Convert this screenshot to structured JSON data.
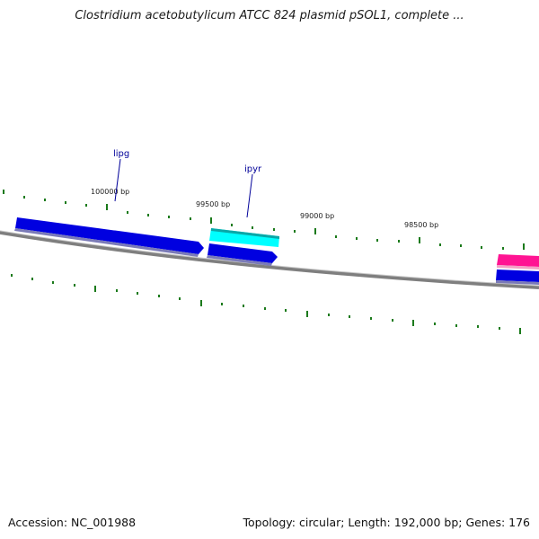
{
  "title": "Clostridium acetobutylicum ATCC 824 plasmid pSOL1, complete ...",
  "footer": {
    "accession": "Accession: NC_001988",
    "summary": "Topology: circular; Length: 192,000 bp; Genes: 176"
  },
  "colors": {
    "backbone": "#8a8a8a",
    "tick": "#1b7a1b",
    "gene_dark_blue": "#0000e0",
    "gene_cyan": "#00ffff",
    "gene_magenta": "#ff1493",
    "label": "#000099"
  },
  "scale_labels": [
    "100000 bp",
    "99500 bp",
    "99000 bp",
    "98500 bp"
  ],
  "gene_labels": [
    "lipg",
    "ipyr"
  ]
}
